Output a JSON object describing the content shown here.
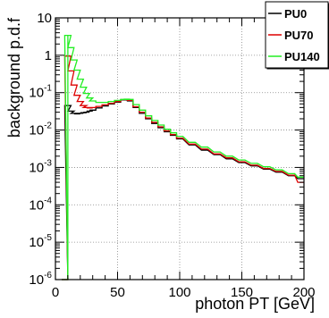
{
  "chart_data": {
    "type": "line",
    "style": "step-histogram",
    "xlabel": "photon PT [GeV]",
    "ylabel": "background p.d.f",
    "xlim": [
      0,
      200
    ],
    "ylim": [
      1e-06,
      10
    ],
    "yscale": "log",
    "grid": true,
    "legend_position": "top-right",
    "x_ticks": [
      "0",
      "50",
      "100",
      "150",
      "200"
    ],
    "y_ticks": [
      "10^-6",
      "10^-5",
      "10^-4",
      "10^-3",
      "10^-2",
      "10^-1",
      "1",
      "10"
    ],
    "series": [
      {
        "name": "PU0",
        "color": "#000000",
        "x": [
          7.5,
          10,
          12.5,
          15,
          17.5,
          20,
          22.5,
          25,
          27.5,
          30,
          35,
          40,
          45,
          50,
          55,
          57.5,
          60,
          65,
          70,
          75,
          80,
          85,
          90,
          95,
          100,
          110,
          120,
          130,
          140,
          150,
          160,
          170,
          180,
          190,
          197.5
        ],
        "y": [
          1e-06,
          0.045,
          0.032,
          0.028,
          0.027,
          0.028,
          0.029,
          0.03,
          0.032,
          0.034,
          0.039,
          0.044,
          0.05,
          0.056,
          0.064,
          0.066,
          0.06,
          0.04,
          0.028,
          0.02,
          0.015,
          0.0115,
          0.009,
          0.0072,
          0.0058,
          0.004,
          0.0029,
          0.0022,
          0.0017,
          0.00135,
          0.0011,
          0.0009,
          0.00075,
          0.0006,
          0.0005
        ]
      },
      {
        "name": "PU70",
        "color": "#dd0000",
        "x": [
          7.5,
          10,
          12.5,
          15,
          17.5,
          20,
          22.5,
          25,
          27.5,
          30,
          35,
          40,
          45,
          50,
          55,
          57.5,
          60,
          65,
          70,
          75,
          80,
          85,
          90,
          95,
          100,
          110,
          120,
          130,
          140,
          150,
          160,
          170,
          180,
          190,
          197.5
        ],
        "y": [
          1e-06,
          0.95,
          0.38,
          0.16,
          0.085,
          0.058,
          0.045,
          0.04,
          0.039,
          0.04,
          0.043,
          0.047,
          0.052,
          0.058,
          0.065,
          0.066,
          0.062,
          0.042,
          0.03,
          0.021,
          0.016,
          0.0122,
          0.0095,
          0.0076,
          0.0061,
          0.0042,
          0.0031,
          0.0023,
          0.0018,
          0.00142,
          0.00115,
          0.00094,
          0.00078,
          0.00062,
          0.0004
        ]
      },
      {
        "name": "PU140",
        "color": "#22ee22",
        "x": [
          7.5,
          10,
          12.5,
          15,
          17.5,
          20,
          22.5,
          25,
          27.5,
          30,
          35,
          40,
          45,
          50,
          55,
          57.5,
          60,
          65,
          70,
          75,
          80,
          85,
          90,
          95,
          100,
          110,
          120,
          130,
          140,
          150,
          160,
          170,
          180,
          190,
          197.5
        ],
        "y": [
          1e-06,
          3.4,
          1.6,
          0.75,
          0.4,
          0.23,
          0.14,
          0.095,
          0.072,
          0.06,
          0.055,
          0.055,
          0.058,
          0.062,
          0.066,
          0.067,
          0.066,
          0.048,
          0.034,
          0.024,
          0.018,
          0.0136,
          0.0105,
          0.0084,
          0.0068,
          0.0047,
          0.0035,
          0.0026,
          0.002,
          0.00158,
          0.00128,
          0.00104,
          0.00086,
          0.00068,
          0.00055
        ]
      }
    ]
  }
}
